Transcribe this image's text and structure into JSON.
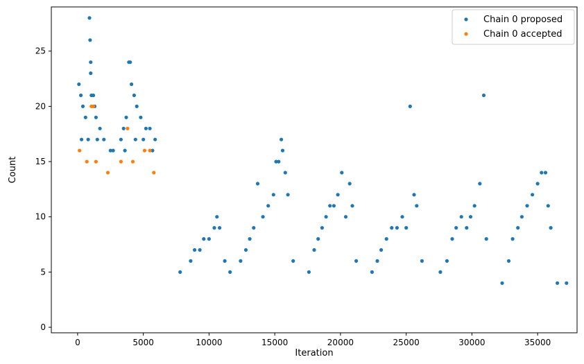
{
  "chart_data": {
    "type": "scatter",
    "title": "",
    "xlabel": "Iteration",
    "ylabel": "Count",
    "xlim": [
      -2000,
      38000
    ],
    "ylim": [
      -0.5,
      29
    ],
    "xticks": [
      0,
      5000,
      10000,
      15000,
      20000,
      25000,
      30000,
      35000
    ],
    "xtick_labels": [
      "0",
      "5000",
      "10000",
      "15000",
      "20000",
      "25000",
      "30000",
      "35000"
    ],
    "yticks": [
      0,
      5,
      10,
      15,
      20,
      25
    ],
    "ytick_labels": [
      "0",
      "5",
      "10",
      "15",
      "20",
      "25"
    ],
    "grid": false,
    "legend_position": "top-right",
    "series": [
      {
        "name": "Chain 0 proposed",
        "color": "#1f77b4",
        "points": [
          [
            100,
            22
          ],
          [
            250,
            21
          ],
          [
            400,
            20
          ],
          [
            600,
            19
          ],
          [
            900,
            28
          ],
          [
            950,
            26
          ],
          [
            1000,
            24
          ],
          [
            1000,
            23
          ],
          [
            1050,
            21
          ],
          [
            1200,
            21
          ],
          [
            1300,
            20
          ],
          [
            1400,
            19
          ],
          [
            1700,
            18
          ],
          [
            2000,
            17
          ],
          [
            2500,
            16
          ],
          [
            3300,
            17
          ],
          [
            3500,
            18
          ],
          [
            3700,
            19
          ],
          [
            3900,
            24
          ],
          [
            4000,
            24
          ],
          [
            4100,
            22
          ],
          [
            4300,
            21
          ],
          [
            4500,
            20
          ],
          [
            4800,
            19
          ],
          [
            5200,
            18
          ],
          [
            5500,
            18
          ],
          [
            5900,
            17
          ],
          [
            300,
            17
          ],
          [
            800,
            17
          ],
          [
            1500,
            17
          ],
          [
            2700,
            16
          ],
          [
            3600,
            16
          ],
          [
            4400,
            17
          ],
          [
            5000,
            17
          ],
          [
            5700,
            16
          ],
          [
            7800,
            5
          ],
          [
            8600,
            6
          ],
          [
            8900,
            7
          ],
          [
            9300,
            7
          ],
          [
            9600,
            8
          ],
          [
            10000,
            8
          ],
          [
            10400,
            9
          ],
          [
            10600,
            10
          ],
          [
            10800,
            9
          ],
          [
            11200,
            6
          ],
          [
            11600,
            5
          ],
          [
            12400,
            6
          ],
          [
            12800,
            7
          ],
          [
            13100,
            8
          ],
          [
            13400,
            9
          ],
          [
            13700,
            13
          ],
          [
            14100,
            10
          ],
          [
            14500,
            11
          ],
          [
            14900,
            12
          ],
          [
            15100,
            15
          ],
          [
            15300,
            15
          ],
          [
            15500,
            17
          ],
          [
            15600,
            16
          ],
          [
            15800,
            14
          ],
          [
            16000,
            12
          ],
          [
            16400,
            6
          ],
          [
            17600,
            5
          ],
          [
            18000,
            7
          ],
          [
            18300,
            8
          ],
          [
            18600,
            9
          ],
          [
            18900,
            10
          ],
          [
            19200,
            11
          ],
          [
            19500,
            11
          ],
          [
            19800,
            12
          ],
          [
            20100,
            14
          ],
          [
            20400,
            10
          ],
          [
            20700,
            13
          ],
          [
            20900,
            11
          ],
          [
            21200,
            6
          ],
          [
            22400,
            5
          ],
          [
            22800,
            6
          ],
          [
            23100,
            7
          ],
          [
            23500,
            8
          ],
          [
            23900,
            9
          ],
          [
            24300,
            9
          ],
          [
            24700,
            10
          ],
          [
            25000,
            9
          ],
          [
            25300,
            20
          ],
          [
            25600,
            12
          ],
          [
            25800,
            11
          ],
          [
            26200,
            6
          ],
          [
            27600,
            5
          ],
          [
            28100,
            6
          ],
          [
            28500,
            8
          ],
          [
            28800,
            9
          ],
          [
            29200,
            10
          ],
          [
            29600,
            9
          ],
          [
            29900,
            10
          ],
          [
            30200,
            11
          ],
          [
            30600,
            13
          ],
          [
            30900,
            21
          ],
          [
            31100,
            8
          ],
          [
            32300,
            4
          ],
          [
            32800,
            6
          ],
          [
            33100,
            8
          ],
          [
            33500,
            9
          ],
          [
            33800,
            10
          ],
          [
            34200,
            11
          ],
          [
            34600,
            12
          ],
          [
            35000,
            13
          ],
          [
            35300,
            14
          ],
          [
            35600,
            14
          ],
          [
            35800,
            11
          ],
          [
            36000,
            9
          ],
          [
            36500,
            4
          ],
          [
            37200,
            4
          ]
        ]
      },
      {
        "name": "Chain 0 accepted",
        "color": "#ff7f0e",
        "points": [
          [
            1050,
            20
          ],
          [
            1200,
            20
          ],
          [
            3800,
            18
          ],
          [
            5500,
            16
          ],
          [
            150,
            16
          ],
          [
            700,
            15
          ],
          [
            1400,
            15
          ],
          [
            2300,
            14
          ],
          [
            3300,
            15
          ],
          [
            4200,
            15
          ],
          [
            5100,
            16
          ],
          [
            5800,
            14
          ]
        ]
      }
    ]
  }
}
